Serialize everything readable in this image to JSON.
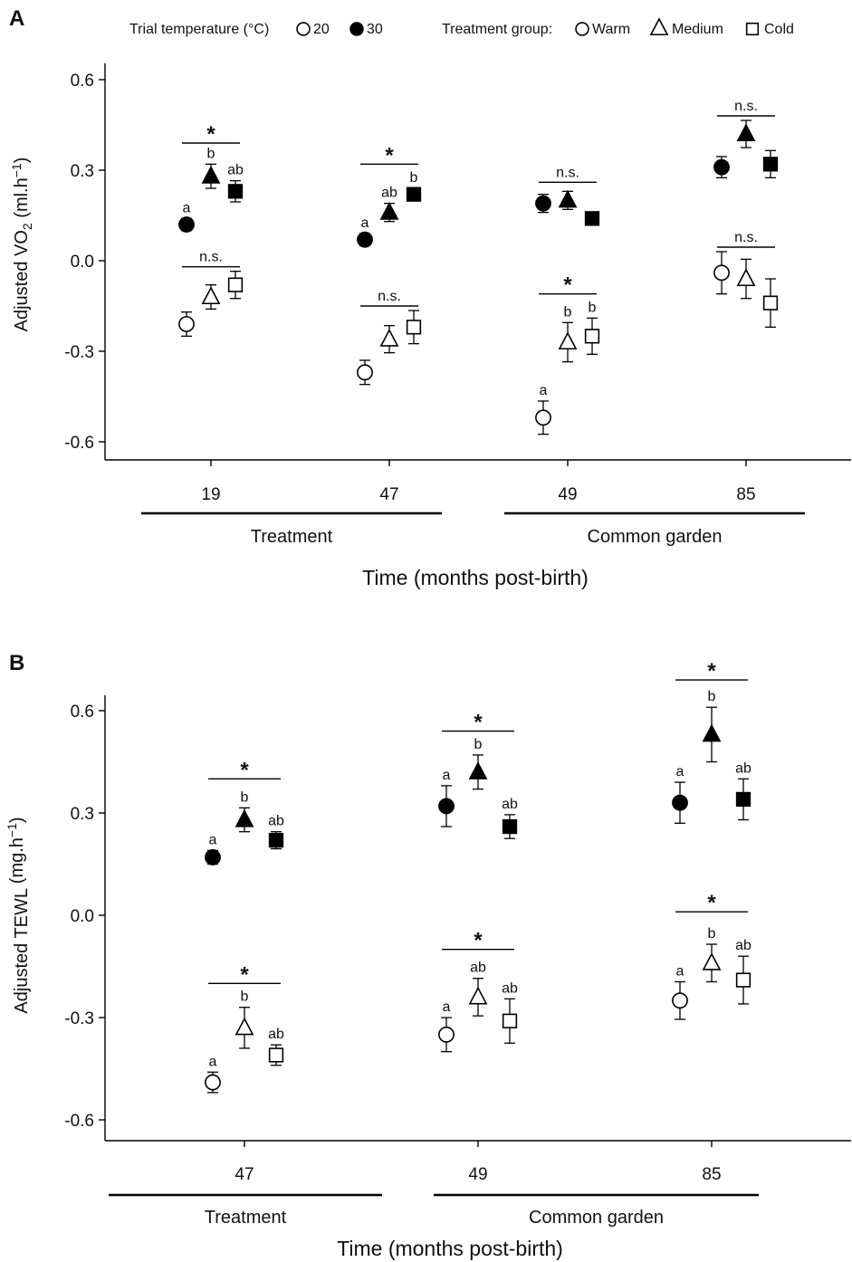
{
  "legend": {
    "trial_temperature_label": "Trial temperature (°C)",
    "trial_temperatures": [
      {
        "label": "20",
        "fill": "open"
      },
      {
        "label": "30",
        "fill": "filled"
      }
    ],
    "treatment_group_label": "Treatment group:",
    "treatment_groups": [
      {
        "label": "Warm",
        "shape": "circle"
      },
      {
        "label": "Medium",
        "shape": "triangle"
      },
      {
        "label": "Cold",
        "shape": "square"
      }
    ]
  },
  "chart_data": [
    {
      "panel": "A",
      "type": "scatter",
      "xlabel": "Time (months post-birth)",
      "ylabel_main": "Adjusted  VO",
      "ylabel_sub": "2",
      "ylabel_unit": "(ml.h",
      "ylabel_exp": "−1",
      "ylabel_close": ")",
      "ylim": [
        -0.66,
        0.66
      ],
      "yticks": [
        0.6,
        0.3,
        0.0,
        -0.3,
        -0.6
      ],
      "ytick_labels": [
        "0.6",
        "0.3",
        "0.0",
        "-0.3",
        "-0.6"
      ],
      "categories": [
        "19",
        "47",
        "49",
        "85"
      ],
      "groups": [
        {
          "label": "Treatment",
          "categories": [
            0,
            1
          ]
        },
        {
          "label": "Common garden",
          "categories": [
            2,
            3
          ]
        }
      ],
      "series": [
        {
          "trial": "30",
          "group": "Warm",
          "shape": "circle",
          "fill": "filled",
          "values": [
            0.12,
            0.07,
            0.19,
            0.31
          ],
          "err": [
            0.02,
            0.02,
            0.03,
            0.035
          ]
        },
        {
          "trial": "30",
          "group": "Medium",
          "shape": "triangle",
          "fill": "filled",
          "values": [
            0.28,
            0.16,
            0.2,
            0.42
          ],
          "err": [
            0.04,
            0.03,
            0.03,
            0.045
          ]
        },
        {
          "trial": "30",
          "group": "Cold",
          "shape": "square",
          "fill": "filled",
          "values": [
            0.23,
            0.22,
            0.14,
            0.32
          ],
          "err": [
            0.035,
            0.02,
            0.02,
            0.045
          ]
        },
        {
          "trial": "20",
          "group": "Warm",
          "shape": "circle",
          "fill": "open",
          "values": [
            -0.21,
            -0.37,
            -0.52,
            -0.04
          ],
          "err": [
            0.04,
            0.04,
            0.055,
            0.07
          ]
        },
        {
          "trial": "20",
          "group": "Medium",
          "shape": "triangle",
          "fill": "open",
          "values": [
            -0.12,
            -0.26,
            -0.27,
            -0.06
          ],
          "err": [
            0.04,
            0.045,
            0.065,
            0.065
          ]
        },
        {
          "trial": "20",
          "group": "Cold",
          "shape": "square",
          "fill": "open",
          "values": [
            -0.08,
            -0.22,
            -0.25,
            -0.14
          ],
          "err": [
            0.045,
            0.055,
            0.06,
            0.08
          ]
        }
      ],
      "significance": [
        {
          "category": 0,
          "trial": "30",
          "mark": "*",
          "y": 0.39,
          "letters": [
            "a",
            "b",
            "ab"
          ]
        },
        {
          "category": 0,
          "trial": "20",
          "mark": "n.s.",
          "y": -0.02,
          "letters": []
        },
        {
          "category": 1,
          "trial": "30",
          "mark": "*",
          "y": 0.32,
          "letters": [
            "a",
            "ab",
            "b"
          ]
        },
        {
          "category": 1,
          "trial": "20",
          "mark": "n.s.",
          "y": -0.15,
          "letters": []
        },
        {
          "category": 2,
          "trial": "30",
          "mark": "n.s.",
          "y": 0.26,
          "letters": []
        },
        {
          "category": 2,
          "trial": "20",
          "mark": "*",
          "y": -0.11,
          "letters": [
            "a",
            "b",
            "b"
          ]
        },
        {
          "category": 3,
          "trial": "30",
          "mark": "n.s.",
          "y": 0.48,
          "letters": []
        },
        {
          "category": 3,
          "trial": "20",
          "mark": "n.s.",
          "y": 0.045,
          "letters": []
        }
      ]
    },
    {
      "panel": "B",
      "type": "scatter",
      "xlabel": "Time (months post-birth)",
      "ylabel_main": "Adjusted  TEWL",
      "ylabel_sub": "",
      "ylabel_unit": "(mg.h",
      "ylabel_exp": "−1",
      "ylabel_close": ")",
      "ylim": [
        -0.66,
        0.66
      ],
      "yticks": [
        0.6,
        0.3,
        0.0,
        -0.3,
        -0.6
      ],
      "ytick_labels": [
        "0.6",
        "0.3",
        "0.0",
        "-0.3",
        "-0.6"
      ],
      "categories": [
        "47",
        "49",
        "85"
      ],
      "groups": [
        {
          "label": "Treatment",
          "categories": [
            0
          ]
        },
        {
          "label": "Common garden",
          "categories": [
            1,
            2
          ]
        }
      ],
      "series": [
        {
          "trial": "30",
          "group": "Warm",
          "shape": "circle",
          "fill": "filled",
          "values": [
            0.17,
            0.32,
            0.33
          ],
          "err": [
            0.02,
            0.06,
            0.06
          ]
        },
        {
          "trial": "30",
          "group": "Medium",
          "shape": "triangle",
          "fill": "filled",
          "values": [
            0.28,
            0.42,
            0.53
          ],
          "err": [
            0.035,
            0.05,
            0.08
          ]
        },
        {
          "trial": "30",
          "group": "Cold",
          "shape": "square",
          "fill": "filled",
          "values": [
            0.22,
            0.26,
            0.34
          ],
          "err": [
            0.025,
            0.035,
            0.06
          ]
        },
        {
          "trial": "20",
          "group": "Warm",
          "shape": "circle",
          "fill": "open",
          "values": [
            -0.49,
            -0.35,
            -0.25
          ],
          "err": [
            0.03,
            0.05,
            0.055
          ]
        },
        {
          "trial": "20",
          "group": "Medium",
          "shape": "triangle",
          "fill": "open",
          "values": [
            -0.33,
            -0.24,
            -0.14
          ],
          "err": [
            0.06,
            0.055,
            0.055
          ]
        },
        {
          "trial": "20",
          "group": "Cold",
          "shape": "square",
          "fill": "open",
          "values": [
            -0.41,
            -0.31,
            -0.19
          ],
          "err": [
            0.03,
            0.065,
            0.07
          ]
        }
      ],
      "significance": [
        {
          "category": 0,
          "trial": "30",
          "mark": "*",
          "y": 0.4,
          "letters": [
            "a",
            "b",
            "ab"
          ]
        },
        {
          "category": 0,
          "trial": "20",
          "mark": "*",
          "y": -0.2,
          "letters": [
            "a",
            "b",
            "ab"
          ]
        },
        {
          "category": 1,
          "trial": "30",
          "mark": "*",
          "y": 0.54,
          "letters": [
            "a",
            "b",
            "ab"
          ]
        },
        {
          "category": 1,
          "trial": "20",
          "mark": "*",
          "y": -0.1,
          "letters": [
            "a",
            "ab",
            "ab"
          ]
        },
        {
          "category": 2,
          "trial": "30",
          "mark": "*",
          "y": 0.69,
          "letters": [
            "a",
            "b",
            "ab"
          ]
        },
        {
          "category": 2,
          "trial": "20",
          "mark": "*",
          "y": 0.01,
          "letters": [
            "a",
            "b",
            "ab"
          ]
        }
      ]
    }
  ]
}
